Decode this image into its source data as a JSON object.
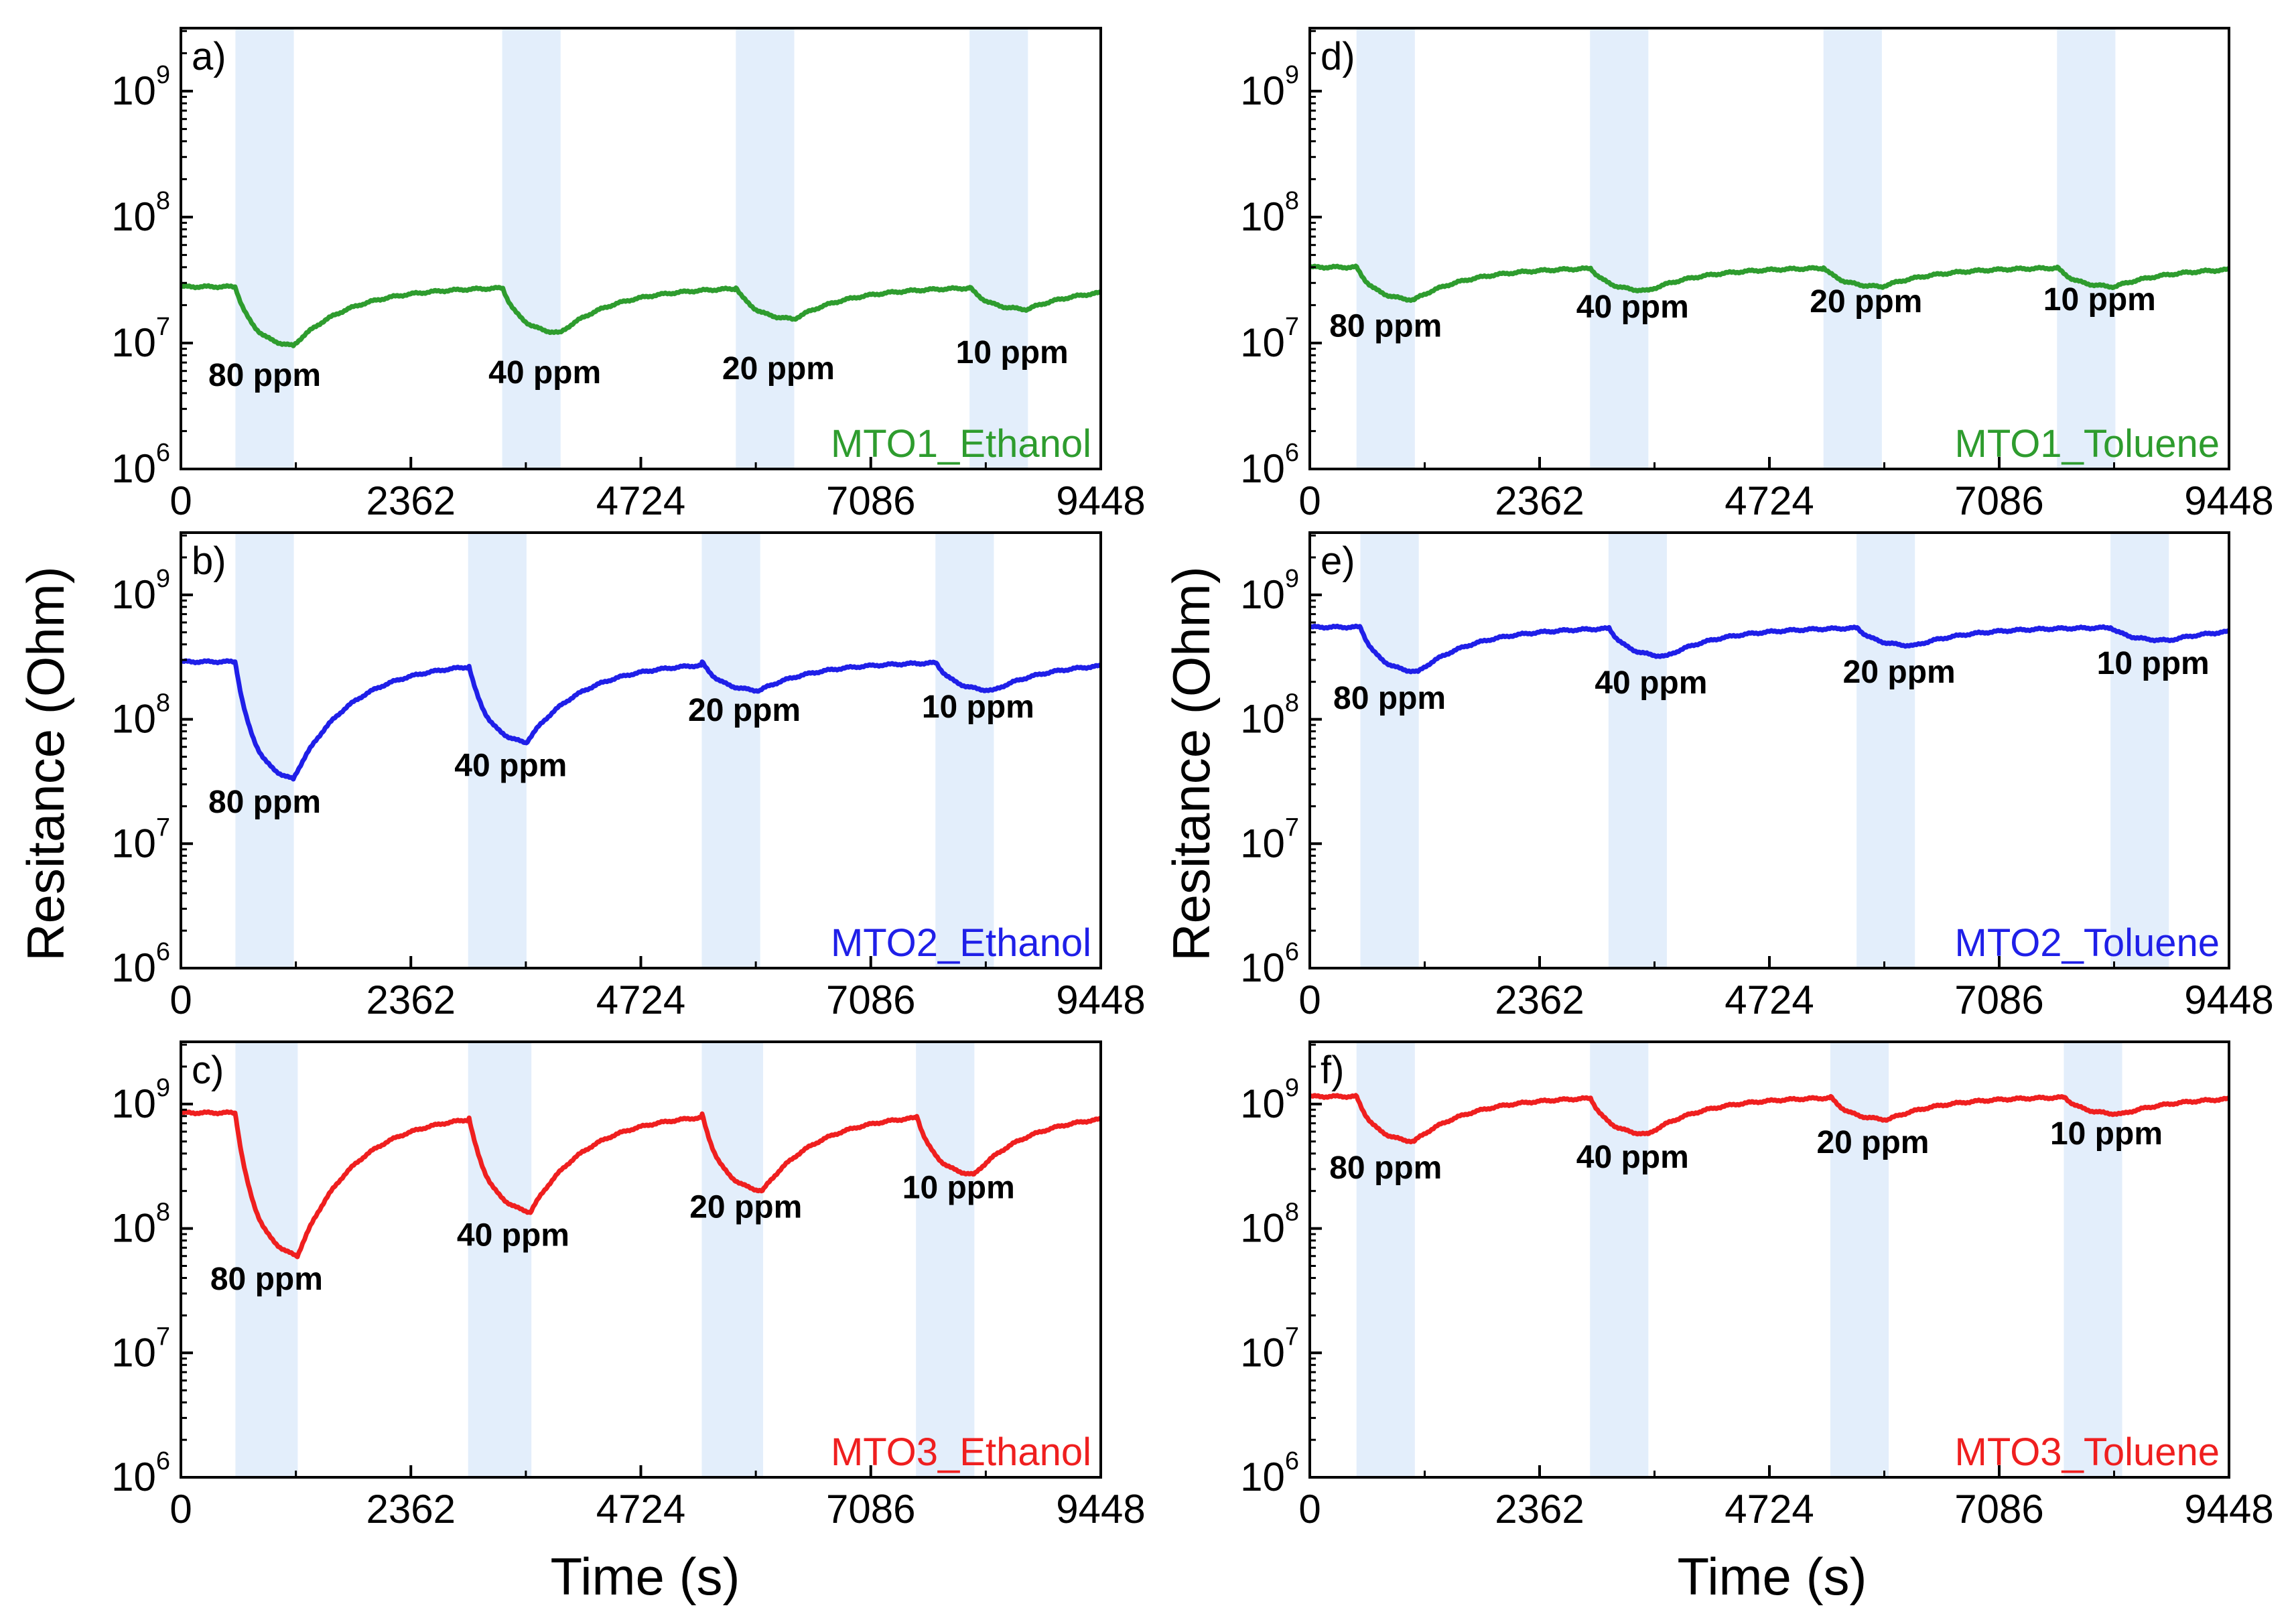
{
  "figure": {
    "ylabel": "Resitance (Ohm)",
    "xlabel": "Time (s)"
  },
  "colors": {
    "green": "#2e9c2e",
    "blue": "#1f1fe8",
    "red": "#ef1f1f",
    "exposure_band": "#e3eefb"
  },
  "chart_data": [
    {
      "type": "line",
      "panel": "a)",
      "label": "MTO1_Ethanol",
      "color": "green",
      "xlim": [
        0,
        9448
      ],
      "xticks": [
        "0",
        "2362",
        "4724",
        "7086",
        "9448"
      ],
      "ylim_log10": [
        6,
        9.5
      ],
      "yticks": [
        {
          "base": "10",
          "exp": "6"
        },
        {
          "base": "10",
          "exp": "7"
        },
        {
          "base": "10",
          "exp": "8"
        },
        {
          "base": "10",
          "exp": "9"
        }
      ],
      "baseline": 28000000.0,
      "exposures": [
        {
          "start": 560,
          "end": 1160,
          "min": 9500000.0,
          "text": "80 ppm"
        },
        {
          "start": 3300,
          "end": 3900,
          "min": 12000000.0,
          "text": "40 ppm"
        },
        {
          "start": 5700,
          "end": 6300,
          "min": 15500000.0,
          "text": "20 ppm"
        },
        {
          "start": 8100,
          "end": 8700,
          "min": 18500000.0,
          "text": "10 ppm"
        }
      ]
    },
    {
      "type": "line",
      "panel": "b)",
      "label": "MTO2_Ethanol",
      "color": "blue",
      "xlim": [
        0,
        9448
      ],
      "xticks": [
        "0",
        "2362",
        "4724",
        "7086",
        "9448"
      ],
      "ylim_log10": [
        6,
        9.5
      ],
      "yticks": [
        {
          "base": "10",
          "exp": "6"
        },
        {
          "base": "10",
          "exp": "7"
        },
        {
          "base": "10",
          "exp": "8"
        },
        {
          "base": "10",
          "exp": "9"
        }
      ],
      "baseline": 290000000.0,
      "exposures": [
        {
          "start": 560,
          "end": 1160,
          "min": 33000000.0,
          "text": "80 ppm"
        },
        {
          "start": 2950,
          "end": 3550,
          "min": 65000000.0,
          "text": "40 ppm"
        },
        {
          "start": 5350,
          "end": 5950,
          "min": 170000000.0,
          "text": "20 ppm"
        },
        {
          "start": 7750,
          "end": 8350,
          "min": 170000000.0,
          "text": "10 ppm"
        }
      ]
    },
    {
      "type": "line",
      "panel": "c)",
      "label": "MTO3_Ethanol",
      "color": "red",
      "xlim": [
        0,
        9448
      ],
      "xticks": [
        "0",
        "2362",
        "4724",
        "7086",
        "9448"
      ],
      "ylim_log10": [
        6,
        9.5
      ],
      "yticks": [
        {
          "base": "10",
          "exp": "6"
        },
        {
          "base": "10",
          "exp": "7"
        },
        {
          "base": "10",
          "exp": "8"
        },
        {
          "base": "10",
          "exp": "9"
        }
      ],
      "baseline": 850000000.0,
      "exposures": [
        {
          "start": 560,
          "end": 1200,
          "min": 60000000.0,
          "text": "80 ppm"
        },
        {
          "start": 2950,
          "end": 3600,
          "min": 135000000.0,
          "text": "40 ppm"
        },
        {
          "start": 5350,
          "end": 5980,
          "min": 200000000.0,
          "text": "20 ppm"
        },
        {
          "start": 7550,
          "end": 8150,
          "min": 270000000.0,
          "text": "10 ppm"
        }
      ]
    },
    {
      "type": "line",
      "panel": "d)",
      "label": "MTO1_Toluene",
      "color": "green",
      "xlim": [
        0,
        9448
      ],
      "xticks": [
        "0",
        "2362",
        "4724",
        "7086",
        "9448"
      ],
      "ylim_log10": [
        6,
        9.5
      ],
      "yticks": [
        {
          "base": "10",
          "exp": "6"
        },
        {
          "base": "10",
          "exp": "7"
        },
        {
          "base": "10",
          "exp": "8"
        },
        {
          "base": "10",
          "exp": "9"
        }
      ],
      "baseline": 40000000.0,
      "exposures": [
        {
          "start": 480,
          "end": 1080,
          "min": 22000000.0,
          "text": "80 ppm"
        },
        {
          "start": 2880,
          "end": 3480,
          "min": 26000000.0,
          "text": "40 ppm"
        },
        {
          "start": 5280,
          "end": 5880,
          "min": 28000000.0,
          "text": "20 ppm"
        },
        {
          "start": 7680,
          "end": 8280,
          "min": 28000000.0,
          "text": "10 ppm"
        }
      ]
    },
    {
      "type": "line",
      "panel": "e)",
      "label": "MTO2_Toluene",
      "color": "blue",
      "xlim": [
        0,
        9448
      ],
      "xticks": [
        "0",
        "2362",
        "4724",
        "7086",
        "9448"
      ],
      "ylim_log10": [
        6,
        9.5
      ],
      "yticks": [
        {
          "base": "10",
          "exp": "6"
        },
        {
          "base": "10",
          "exp": "7"
        },
        {
          "base": "10",
          "exp": "8"
        },
        {
          "base": "10",
          "exp": "9"
        }
      ],
      "baseline": 550000000.0,
      "exposures": [
        {
          "start": 520,
          "end": 1120,
          "min": 240000000.0,
          "text": "80 ppm"
        },
        {
          "start": 3070,
          "end": 3670,
          "min": 320000000.0,
          "text": "40 ppm"
        },
        {
          "start": 5620,
          "end": 6220,
          "min": 390000000.0,
          "text": "20 ppm"
        },
        {
          "start": 8230,
          "end": 8830,
          "min": 430000000.0,
          "text": "10 ppm"
        }
      ]
    },
    {
      "type": "line",
      "panel": "f)",
      "label": "MTO3_Toluene",
      "color": "red",
      "xlim": [
        0,
        9448
      ],
      "xticks": [
        "0",
        "2362",
        "4724",
        "7086",
        "9448"
      ],
      "ylim_log10": [
        6,
        9.5
      ],
      "yticks": [
        {
          "base": "10",
          "exp": "6"
        },
        {
          "base": "10",
          "exp": "7"
        },
        {
          "base": "10",
          "exp": "8"
        },
        {
          "base": "10",
          "exp": "9"
        }
      ],
      "baseline": 1150000000.0,
      "exposures": [
        {
          "start": 480,
          "end": 1080,
          "min": 500000000.0,
          "text": "80 ppm"
        },
        {
          "start": 2880,
          "end": 3480,
          "min": 570000000.0,
          "text": "40 ppm"
        },
        {
          "start": 5350,
          "end": 5950,
          "min": 750000000.0,
          "text": "20 ppm"
        },
        {
          "start": 7750,
          "end": 8350,
          "min": 830000000.0,
          "text": "10 ppm"
        }
      ]
    }
  ]
}
